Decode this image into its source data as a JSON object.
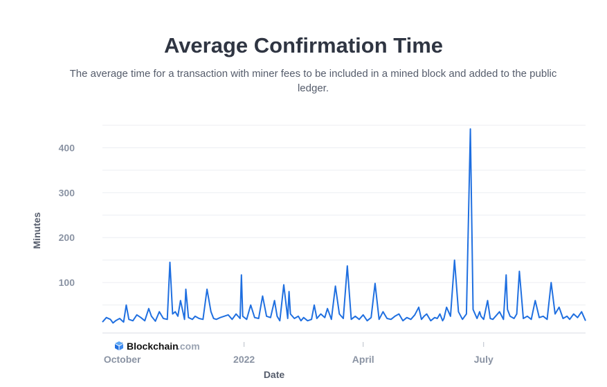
{
  "header": {
    "title": "Average Confirmation Time",
    "subtitle": "The average time for a transaction with miner fees to be included in a mined block and added to the public ledger."
  },
  "brand": {
    "name": "Blockchain",
    "suffix": ".com",
    "color": "#1f76e0"
  },
  "chart_data": {
    "type": "line",
    "title": "Average Confirmation Time",
    "xlabel": "Date",
    "ylabel": "Minutes",
    "ylim": [
      0,
      450
    ],
    "yticks": [
      100,
      200,
      300,
      400
    ],
    "xticks": [
      {
        "label": "October",
        "day": 15
      },
      {
        "label": "2022",
        "day": 107
      },
      {
        "label": "April",
        "day": 197
      },
      {
        "label": "July",
        "day": 288
      }
    ],
    "xlim_days": [
      0,
      365
    ],
    "line_color": "#1f6fe0",
    "grid": true,
    "series": [
      {
        "name": "Average Confirmation Time",
        "days": [
          0,
          3,
          6,
          8,
          10,
          13,
          16,
          18,
          20,
          23,
          26,
          29,
          32,
          35,
          37,
          40,
          43,
          46,
          49,
          51,
          53,
          55,
          57,
          59,
          62,
          63,
          65,
          68,
          70,
          73,
          76,
          79,
          82,
          84,
          86,
          89,
          92,
          95,
          98,
          101,
          104,
          105,
          106,
          109,
          112,
          115,
          118,
          121,
          124,
          127,
          130,
          132,
          134,
          137,
          140,
          141,
          142,
          145,
          148,
          150,
          152,
          155,
          158,
          160,
          162,
          165,
          168,
          170,
          173,
          176,
          179,
          182,
          185,
          188,
          191,
          194,
          197,
          200,
          203,
          206,
          209,
          212,
          215,
          218,
          221,
          224,
          227,
          230,
          233,
          236,
          239,
          241,
          243,
          245,
          248,
          251,
          253,
          255,
          257,
          258,
          260,
          263,
          266,
          269,
          272,
          275,
          278,
          280,
          283,
          285,
          286,
          288,
          291,
          293,
          295,
          297,
          300,
          303,
          305,
          306,
          308,
          311,
          313,
          315,
          318,
          321,
          324,
          327,
          330,
          333,
          336,
          339,
          342,
          345,
          348,
          351,
          353,
          356,
          359,
          362,
          365
        ],
        "values": [
          12,
          22,
          18,
          10,
          15,
          20,
          12,
          50,
          18,
          15,
          28,
          22,
          15,
          42,
          25,
          14,
          35,
          20,
          18,
          145,
          30,
          35,
          25,
          60,
          18,
          85,
          22,
          18,
          25,
          20,
          18,
          85,
          35,
          20,
          18,
          22,
          25,
          28,
          18,
          30,
          20,
          117,
          25,
          18,
          50,
          22,
          20,
          70,
          25,
          22,
          60,
          25,
          15,
          95,
          20,
          80,
          30,
          20,
          25,
          15,
          22,
          15,
          18,
          50,
          20,
          30,
          22,
          42,
          18,
          92,
          30,
          20,
          137,
          18,
          25,
          18,
          28,
          15,
          22,
          98,
          18,
          35,
          20,
          18,
          25,
          30,
          15,
          22,
          18,
          28,
          45,
          18,
          25,
          30,
          15,
          22,
          20,
          30,
          15,
          20,
          45,
          25,
          150,
          35,
          18,
          30,
          442,
          40,
          20,
          35,
          25,
          18,
          60,
          20,
          18,
          25,
          35,
          18,
          117,
          40,
          25,
          20,
          30,
          125,
          20,
          25,
          18,
          60,
          22,
          25,
          18,
          100,
          30,
          45,
          20,
          25,
          18,
          30,
          22,
          35,
          15
        ]
      }
    ]
  }
}
